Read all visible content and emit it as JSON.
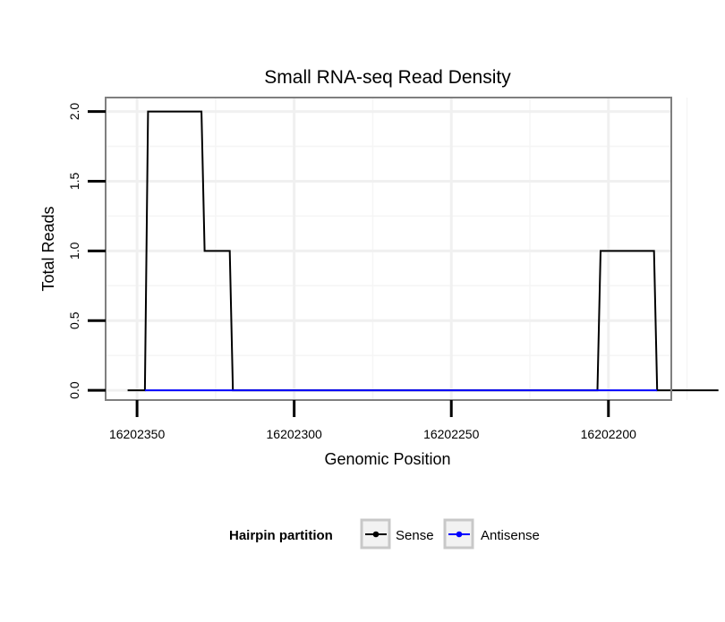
{
  "chart_data": {
    "type": "line",
    "title": "Small RNA-seq Read Density",
    "xlabel": "Genomic Position",
    "ylabel": "Total Reads",
    "xlim": [
      16202360,
      16202180
    ],
    "ylim": [
      -0.07,
      2.1
    ],
    "x_reversed": true,
    "x_ticks": [
      16202350,
      16202300,
      16202250,
      16202200
    ],
    "x_tick_labels": [
      "16202350",
      "16202300",
      "16202250",
      "16202200"
    ],
    "y_ticks": [
      0,
      0.5,
      1,
      1.5,
      2
    ],
    "y_tick_labels": [
      "0.0",
      "0.5",
      "1.0",
      "1.5",
      "2.0"
    ],
    "grid": true,
    "legend": {
      "title": "Hairpin partition",
      "placement": "bottom",
      "entries": [
        "Sense",
        "Antisense"
      ]
    },
    "series": [
      {
        "name": "Sense",
        "color": "#000000",
        "points": [
          [
            16202353,
            0
          ],
          [
            16202347.5,
            0
          ],
          [
            16202346.5,
            2
          ],
          [
            16202329.5,
            2
          ],
          [
            16202328.5,
            1
          ],
          [
            16202320.5,
            1
          ],
          [
            16202319.5,
            0
          ],
          [
            16202203.5,
            0
          ],
          [
            16202202.5,
            1
          ],
          [
            16202185.5,
            1
          ],
          [
            16202184.5,
            0
          ],
          [
            16202165,
            0
          ]
        ]
      },
      {
        "name": "Antisense",
        "color": "#0000ff",
        "points": [
          [
            16202347.5,
            0
          ],
          [
            16202319.5,
            0
          ],
          [
            16202203.5,
            0
          ],
          [
            16202184.5,
            0
          ]
        ]
      }
    ]
  }
}
